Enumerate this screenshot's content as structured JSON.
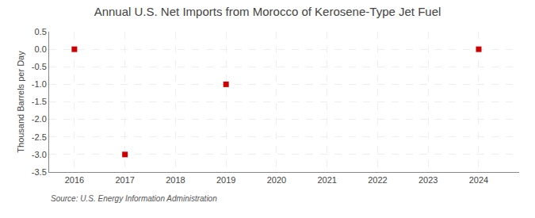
{
  "chart_data": {
    "type": "scatter",
    "title": "Annual U.S. Net Imports from Morocco of Kerosene-Type Jet Fuel",
    "ylabel": "Thousand Barrels per Day",
    "annotations": [
      "Source: U.S. Energy Information Administration"
    ],
    "x": [
      2016,
      2017,
      2019,
      2024
    ],
    "values": [
      0.0,
      -3.0,
      -1.0,
      0.0
    ],
    "color": "#cc0000",
    "marker": "square",
    "xlim": [
      2015.5,
      2024.8
    ],
    "ylim": [
      -3.5,
      0.5
    ],
    "xticks": [
      2016,
      2017,
      2018,
      2019,
      2020,
      2021,
      2022,
      2023,
      2024
    ],
    "yticks": [
      0.5,
      {
        "value": 0,
        "label": "0.0"
      },
      -0.5,
      {
        "value": -1,
        "label": "-1.0"
      },
      -1.5,
      {
        "value": -2,
        "label": "-2.0"
      },
      -2.5,
      {
        "value": -3,
        "label": "-3.0"
      },
      -3.5
    ],
    "grid": true
  }
}
